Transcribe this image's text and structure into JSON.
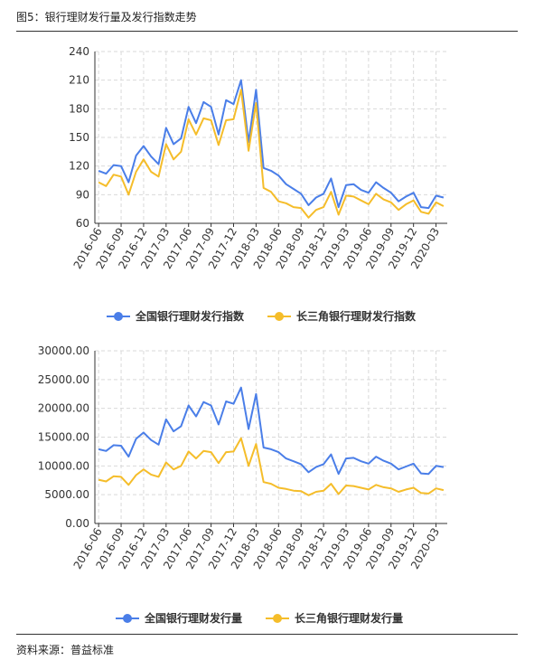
{
  "figure_title": "图5：银行理财发行量及发行指数走势",
  "source": "资料来源：普益标准",
  "colors": {
    "series1": "#4a7ee8",
    "series2": "#f5bd2a",
    "grid": "#d9d9d9",
    "axis": "#333333"
  },
  "chart_data": [
    {
      "type": "line",
      "x_tick_labels": [
        "2016-06",
        "2016-09",
        "2016-12",
        "2017-03",
        "2017-06",
        "2017-09",
        "2017-12",
        "2018-03",
        "2018-06",
        "2018-09",
        "2018-12",
        "2019-03",
        "2019-06",
        "2019-09",
        "2019-12",
        "2020-03"
      ],
      "x": [
        "2016-06",
        "2016-07",
        "2016-08",
        "2016-09",
        "2016-10",
        "2016-11",
        "2016-12",
        "2017-01",
        "2017-02",
        "2017-03",
        "2017-04",
        "2017-05",
        "2017-06",
        "2017-07",
        "2017-08",
        "2017-09",
        "2017-10",
        "2017-11",
        "2017-12",
        "2018-01",
        "2018-02",
        "2018-03",
        "2018-04",
        "2018-05",
        "2018-06",
        "2018-07",
        "2018-08",
        "2018-09",
        "2018-10",
        "2018-11",
        "2018-12",
        "2019-01",
        "2019-02",
        "2019-03",
        "2019-04",
        "2019-05",
        "2019-06",
        "2019-07",
        "2019-08",
        "2019-09",
        "2019-10",
        "2019-11",
        "2019-12",
        "2020-01",
        "2020-02",
        "2020-03",
        "2020-04"
      ],
      "y_ticks": [
        "60",
        "90",
        "120",
        "150",
        "180",
        "210",
        "240"
      ],
      "ylim": [
        60,
        240
      ],
      "grid": true,
      "legend_position": "bottom",
      "series": [
        {
          "name": "全国银行理财发行指数",
          "values": [
            115,
            112,
            121,
            120,
            103,
            131,
            141,
            130,
            122,
            160,
            143,
            149,
            182,
            165,
            187,
            182,
            153,
            189,
            185,
            210,
            145,
            200,
            118,
            115,
            110,
            101,
            96,
            91,
            79,
            87,
            91,
            107,
            77,
            100,
            101,
            95,
            92,
            103,
            97,
            92,
            83,
            88,
            92,
            77,
            76,
            89,
            87
          ]
        },
        {
          "name": "长三角银行理财发行指数",
          "values": [
            103,
            99,
            111,
            109,
            90,
            114,
            127,
            114,
            109,
            143,
            127,
            135,
            169,
            153,
            170,
            168,
            142,
            168,
            169,
            200,
            136,
            186,
            97,
            93,
            83,
            81,
            77,
            76,
            66,
            74,
            77,
            93,
            69,
            89,
            88,
            84,
            80,
            91,
            85,
            82,
            74,
            80,
            84,
            72,
            70,
            82,
            78
          ]
        }
      ]
    },
    {
      "type": "line",
      "x_tick_labels": [
        "2016-06",
        "2016-09",
        "2016-12",
        "2017-03",
        "2017-06",
        "2017-09",
        "2017-12",
        "2018-03",
        "2018-06",
        "2018-09",
        "2018-12",
        "2019-03",
        "2019-06",
        "2019-09",
        "2019-12",
        "2020-03"
      ],
      "x": [
        "2016-06",
        "2016-07",
        "2016-08",
        "2016-09",
        "2016-10",
        "2016-11",
        "2016-12",
        "2017-01",
        "2017-02",
        "2017-03",
        "2017-04",
        "2017-05",
        "2017-06",
        "2017-07",
        "2017-08",
        "2017-09",
        "2017-10",
        "2017-11",
        "2017-12",
        "2018-01",
        "2018-02",
        "2018-03",
        "2018-04",
        "2018-05",
        "2018-06",
        "2018-07",
        "2018-08",
        "2018-09",
        "2018-10",
        "2018-11",
        "2018-12",
        "2019-01",
        "2019-02",
        "2019-03",
        "2019-04",
        "2019-05",
        "2019-06",
        "2019-07",
        "2019-08",
        "2019-09",
        "2019-10",
        "2019-11",
        "2019-12",
        "2020-01",
        "2020-02",
        "2020-03",
        "2020-04"
      ],
      "y_ticks": [
        "0.00",
        "5000.00",
        "10000.00",
        "15000.00",
        "20000.00",
        "25000.00",
        "30000.00"
      ],
      "ylim": [
        0,
        30000
      ],
      "grid": true,
      "legend_position": "bottom",
      "series": [
        {
          "name": "全国银行理财发行量",
          "values": [
            12900,
            12600,
            13600,
            13500,
            11600,
            14700,
            15800,
            14500,
            13700,
            18100,
            16000,
            16900,
            20500,
            18600,
            21100,
            20500,
            17200,
            21200,
            20800,
            23600,
            16400,
            22500,
            13200,
            12900,
            12400,
            11300,
            10800,
            10300,
            8900,
            9800,
            10300,
            12000,
            8600,
            11300,
            11400,
            10800,
            10400,
            11600,
            10900,
            10400,
            9400,
            9900,
            10400,
            8700,
            8600,
            10000,
            9800
          ]
        },
        {
          "name": "长三角银行理财发行量",
          "values": [
            7600,
            7300,
            8200,
            8100,
            6700,
            8400,
            9400,
            8500,
            8100,
            10600,
            9400,
            10000,
            12500,
            11300,
            12600,
            12400,
            10500,
            12400,
            12500,
            14800,
            10000,
            13800,
            7200,
            6900,
            6200,
            6000,
            5700,
            5600,
            4900,
            5500,
            5700,
            6900,
            5100,
            6600,
            6500,
            6200,
            5900,
            6700,
            6300,
            6100,
            5500,
            5900,
            6200,
            5300,
            5200,
            6100,
            5800
          ]
        }
      ]
    }
  ]
}
